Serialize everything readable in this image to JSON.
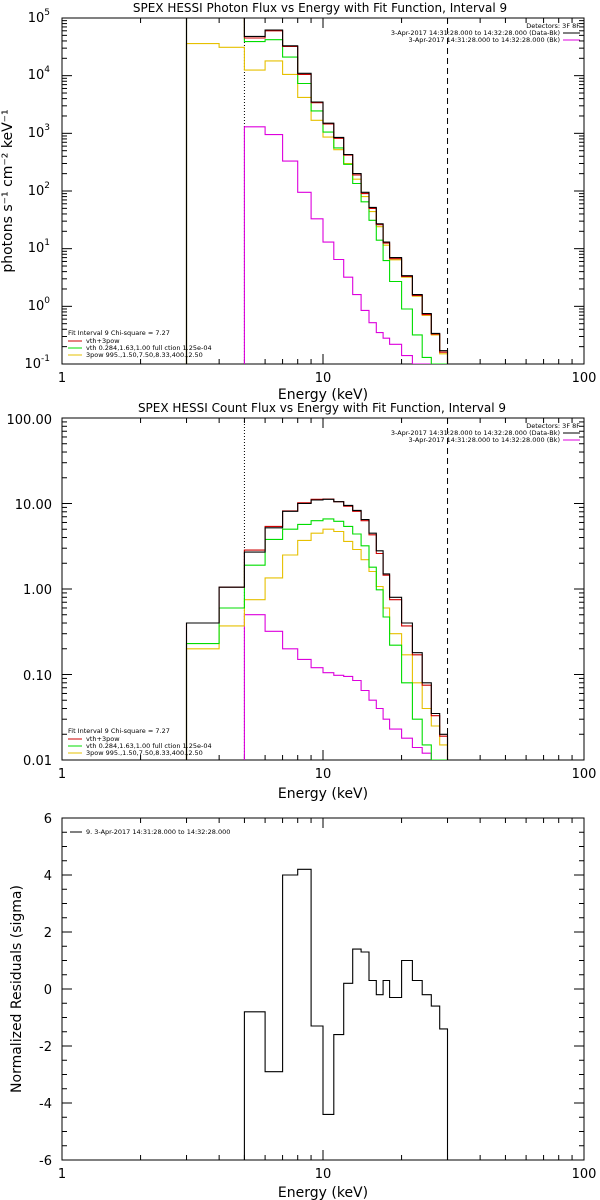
{
  "colors": {
    "total": "#cc0000",
    "vth": "#00dd00",
    "power": "#e6c000",
    "background": "#dd00dd",
    "data": "#000000"
  },
  "chart_data": [
    {
      "type": "line",
      "title": "SPEX HESSI Photon Flux vs Energy with Fit Function, Interval 9",
      "xlabel": "Energy (keV)",
      "ylabel": "photons s⁻¹ cm⁻² keV⁻¹",
      "xscale": "log",
      "yscale": "log",
      "xlim": [
        1,
        100
      ],
      "ylim": [
        0.1,
        100000
      ],
      "x_ticks": [
        1,
        10,
        100
      ],
      "x_tick_labels": [
        "1",
        "10",
        "100"
      ],
      "y_ticks": [
        0.1,
        1,
        10,
        100,
        1000,
        10000,
        100000
      ],
      "y_tick_labels": [
        "10",
        "10",
        "10",
        "10",
        "10",
        "10",
        "10"
      ],
      "y_tick_exponents": [
        "-1",
        "0",
        "1",
        "2",
        "3",
        "4",
        "5"
      ],
      "vlines": [
        {
          "x": 5,
          "style": "dotted"
        },
        {
          "x": 30,
          "style": "dashed"
        }
      ],
      "header_lines": [
        "Detectors: 3F 8F",
        "3-Apr-2017 14:31:28.000 to 14:32:28.000 (Data-Bk)",
        "3-Apr-2017 14:31:28.000 to 14:32:28.000 (Bk)"
      ],
      "fit_lines": [
        "Fit Interval  9   Chi-square = 7.27",
        "vth+3pow",
        "vth 0.284,1.63,1.00  full ction 1.25e-04",
        "3pow 995.,1.50,7.50,8.33,400.,2.50"
      ],
      "bin_edges": [
        3.0,
        4.0,
        5.0,
        6.0,
        7.0,
        8.0,
        9.0,
        10.0,
        11.0,
        12.0,
        13.0,
        14.0,
        15.0,
        16.0,
        17.0,
        18.0,
        20.0,
        22.0,
        24.0,
        26.0,
        28.0,
        30.0
      ],
      "series": [
        {
          "name": "Data-Bk",
          "color_key": "data",
          "values": [
            100000,
            100000,
            48000,
            62000,
            33000,
            11000,
            3500,
            1500,
            850,
            430,
            200,
            95,
            52,
            27,
            13,
            7,
            3.4,
            1.6,
            0.75,
            0.34,
            0.17
          ]
        },
        {
          "name": "vth+3pow",
          "color_key": "total",
          "values": [
            100000,
            100000,
            45000,
            60000,
            32000,
            10500,
            3400,
            1450,
            820,
            420,
            190,
            90,
            50,
            26,
            12.5,
            6.7,
            3.3,
            1.55,
            0.72,
            0.33,
            0.16
          ]
        },
        {
          "name": "vth",
          "color_key": "vth",
          "values": [
            100000,
            100000,
            39000,
            42000,
            21000,
            7300,
            2450,
            1050,
            560,
            290,
            135,
            65,
            31,
            14,
            6.2,
            2.7,
            0.9,
            0.32,
            0.13,
            0.1,
            0.1
          ]
        },
        {
          "name": "3pow",
          "color_key": "power",
          "values": [
            36000,
            31000,
            12500,
            18000,
            10500,
            4200,
            1680,
            860,
            520,
            300,
            160,
            80,
            44,
            24,
            11.5,
            6.4,
            3.2,
            1.5,
            0.7,
            0.32,
            0.15
          ]
        },
        {
          "name": "Bk",
          "color_key": "background",
          "values": [
            null,
            null,
            1300,
            950,
            330,
            95,
            33,
            13,
            6.5,
            3.2,
            1.6,
            0.85,
            0.52,
            0.35,
            0.28,
            0.22,
            0.14,
            0.1,
            0.1,
            0.1,
            0.1
          ]
        }
      ]
    },
    {
      "type": "line",
      "title": "SPEX HESSI Count Flux vs Energy with Fit Function, Interval 9",
      "xlabel": "Energy (keV)",
      "ylabel": "",
      "xscale": "log",
      "yscale": "log",
      "xlim": [
        1,
        100
      ],
      "ylim": [
        0.01,
        100
      ],
      "x_ticks": [
        1,
        10,
        100
      ],
      "x_tick_labels": [
        "1",
        "10",
        "100"
      ],
      "y_ticks": [
        0.01,
        0.1,
        1,
        10,
        100
      ],
      "y_tick_labels": [
        "0.01",
        "0.10",
        "1.00",
        "10.00",
        "100.00"
      ],
      "vlines": [
        {
          "x": 5,
          "style": "dotted"
        },
        {
          "x": 30,
          "style": "dashed"
        }
      ],
      "header_lines": [
        "Detectors: 3F 8F",
        "3-Apr-2017 14:31:28.000 to 14:32:28.000 (Data-Bk)",
        "3-Apr-2017 14:31:28.000 to 14:32:28.000 (Bk)"
      ],
      "fit_lines": [
        "Fit Interval  9   Chi-square = 7.27",
        "vth+3pow",
        "vth 0.284,1.63,1.00  full ction 1.25e-04",
        "3pow 995.,1.50,7.50,8.33,400.,2.50"
      ],
      "bin_edges": [
        3.0,
        4.0,
        5.0,
        6.0,
        7.0,
        8.0,
        9.0,
        10.0,
        11.0,
        12.0,
        13.0,
        14.0,
        15.0,
        16.0,
        17.0,
        18.0,
        20.0,
        22.0,
        24.0,
        26.0,
        28.0,
        30.0
      ],
      "series": [
        {
          "name": "Data-Bk",
          "color_key": "data",
          "values": [
            0.4,
            1.05,
            2.7,
            5.2,
            8.1,
            10.0,
            11.0,
            11.2,
            10.5,
            9.5,
            8.3,
            6.5,
            4.5,
            2.8,
            1.5,
            0.8,
            0.4,
            0.18,
            0.08,
            0.035,
            0.02
          ]
        },
        {
          "name": "vth+3pow",
          "color_key": "total",
          "values": [
            0.4,
            1.05,
            2.85,
            5.4,
            8.2,
            10.2,
            11.2,
            11.3,
            10.5,
            9.3,
            8.1,
            6.3,
            4.3,
            2.6,
            1.45,
            0.75,
            0.37,
            0.17,
            0.075,
            0.033,
            0.019
          ]
        },
        {
          "name": "vth",
          "color_key": "vth",
          "values": [
            0.23,
            0.6,
            1.9,
            3.8,
            5.0,
            5.7,
            6.3,
            6.6,
            6.2,
            5.4,
            4.4,
            3.2,
            1.8,
            0.98,
            0.47,
            0.22,
            0.08,
            0.03,
            0.015,
            0.01,
            0.01
          ]
        },
        {
          "name": "3pow",
          "color_key": "power",
          "values": [
            0.2,
            0.37,
            0.75,
            1.35,
            2.5,
            3.7,
            4.5,
            5.0,
            4.7,
            3.6,
            2.9,
            2.2,
            1.6,
            1.07,
            0.6,
            0.3,
            0.17,
            0.08,
            0.04,
            0.025,
            0.015
          ]
        },
        {
          "name": "Bk",
          "color_key": "background",
          "values": [
            null,
            null,
            0.5,
            0.32,
            0.2,
            0.15,
            0.12,
            0.105,
            0.098,
            0.095,
            0.085,
            0.065,
            0.05,
            0.04,
            0.03,
            0.023,
            0.018,
            0.014,
            0.012,
            0.01,
            0.01
          ]
        }
      ]
    },
    {
      "type": "line",
      "title": "",
      "xlabel": "Energy (keV)",
      "ylabel": "Normalized Residuals (sigma)",
      "xscale": "log",
      "yscale": "linear",
      "xlim": [
        1,
        100
      ],
      "ylim": [
        -6,
        6
      ],
      "x_ticks": [
        1,
        10,
        100
      ],
      "x_tick_labels": [
        "1",
        "10",
        "100"
      ],
      "y_ticks": [
        -6,
        -4,
        -2,
        0,
        2,
        4,
        6
      ],
      "y_tick_labels": [
        "-6",
        "-4",
        "-2",
        "0",
        "2",
        "4",
        "6"
      ],
      "legend": "9.  3-Apr-2017 14:31:28.000 to 14:32:28.000",
      "bin_edges": [
        5.0,
        6.0,
        7.0,
        8.0,
        9.0,
        10.0,
        11.0,
        12.0,
        13.0,
        14.0,
        15.0,
        16.0,
        17.0,
        18.0,
        20.0,
        22.0,
        24.0,
        26.0,
        28.0,
        30.0
      ],
      "series": [
        {
          "name": "Residuals",
          "color_key": "data",
          "values": [
            -0.8,
            -2.9,
            4.0,
            4.2,
            -1.3,
            -4.4,
            -1.6,
            0.2,
            1.4,
            1.3,
            0.3,
            -0.2,
            0.3,
            -0.3,
            1.0,
            0.3,
            -0.2,
            -0.6,
            -1.4
          ]
        }
      ]
    }
  ]
}
